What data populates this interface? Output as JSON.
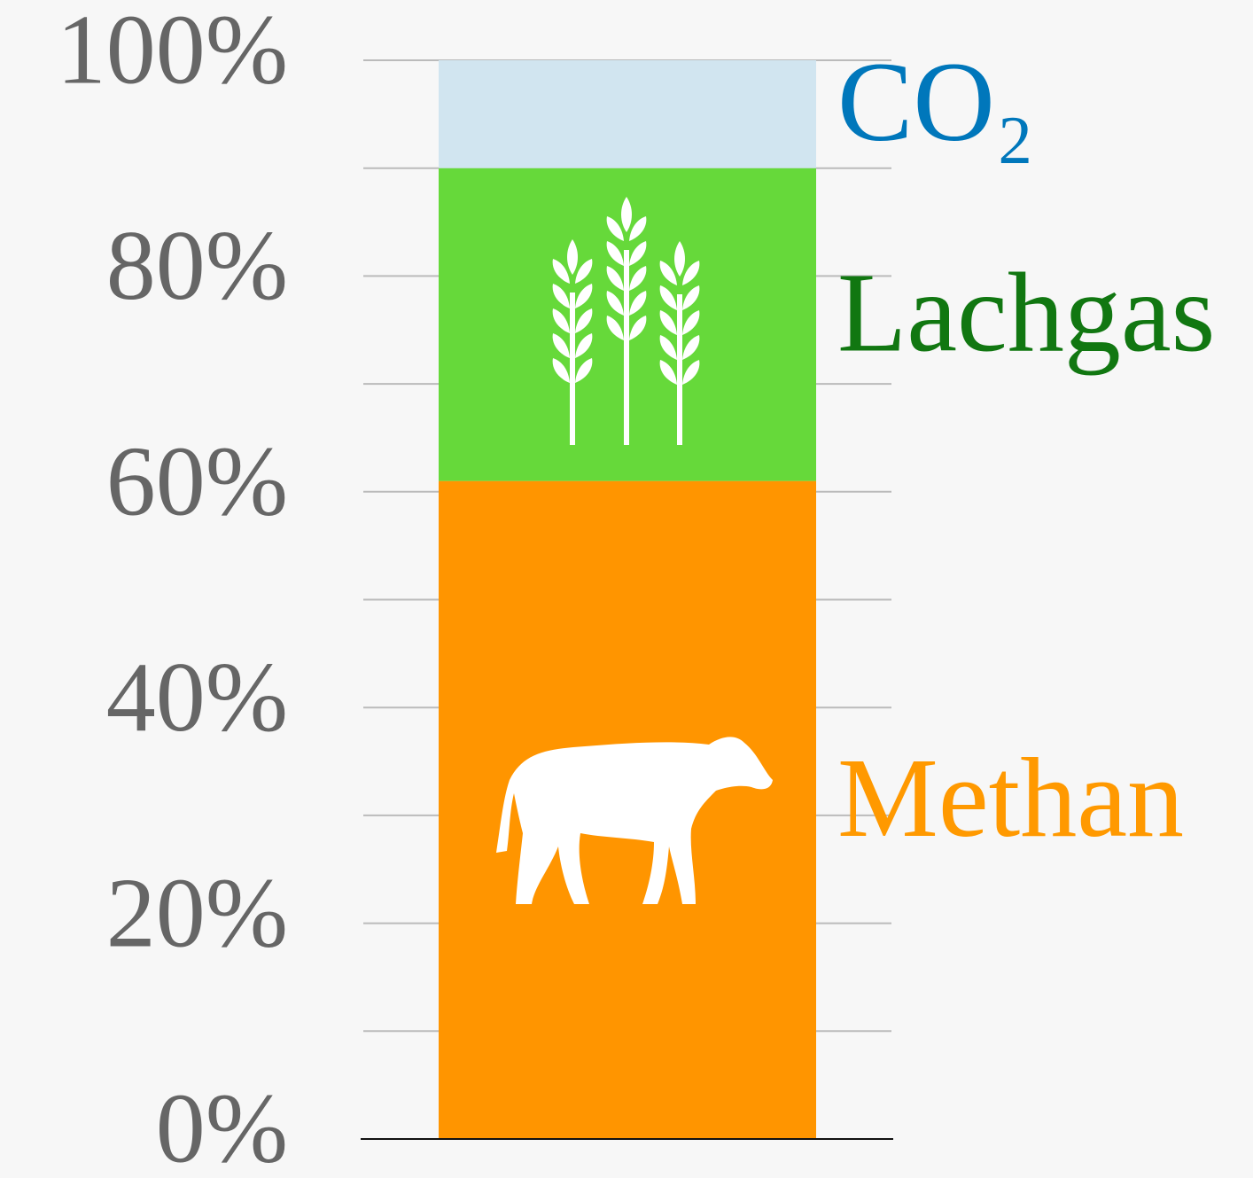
{
  "chart_data": {
    "type": "stacked_bar",
    "series": [
      {
        "name": "Methan",
        "color": "#ff9500",
        "label_color": "#ff9900",
        "values": [
          61
        ]
      },
      {
        "name": "Lachgas",
        "color": "#66d93a",
        "label_color": "#117711",
        "values": [
          29
        ]
      },
      {
        "name": "CO₂",
        "color": "#d1e5f0",
        "label_color": "#0077bb",
        "values": [
          10
        ]
      }
    ],
    "ylim": [
      0,
      100
    ],
    "yticks": [
      {
        "value": 0,
        "label": "0%"
      },
      {
        "value": 20,
        "label": "20%"
      },
      {
        "value": 40,
        "label": "40%"
      },
      {
        "value": 60,
        "label": "60%"
      },
      {
        "value": 80,
        "label": "80%"
      },
      {
        "value": 100,
        "label": "100%"
      }
    ],
    "minor_yticks": [
      10,
      30,
      50,
      70,
      90
    ],
    "grid": true
  }
}
